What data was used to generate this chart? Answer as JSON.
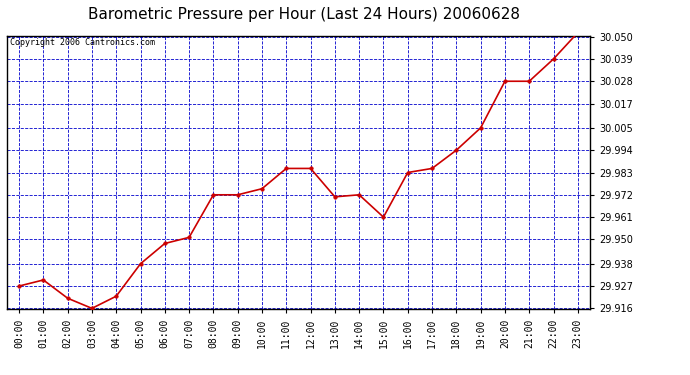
{
  "title": "Barometric Pressure per Hour (Last 24 Hours) 20060628",
  "copyright": "Copyright 2006 Cantronics.com",
  "hours": [
    "00:00",
    "01:00",
    "02:00",
    "03:00",
    "04:00",
    "05:00",
    "06:00",
    "07:00",
    "08:00",
    "09:00",
    "10:00",
    "11:00",
    "12:00",
    "13:00",
    "14:00",
    "15:00",
    "16:00",
    "17:00",
    "18:00",
    "19:00",
    "20:00",
    "21:00",
    "22:00",
    "23:00"
  ],
  "values": [
    29.927,
    29.93,
    29.921,
    29.916,
    29.922,
    29.938,
    29.948,
    29.951,
    29.972,
    29.972,
    29.975,
    29.985,
    29.985,
    29.971,
    29.972,
    29.961,
    29.983,
    29.985,
    29.994,
    30.005,
    30.028,
    30.028,
    30.039,
    30.052
  ],
  "line_color": "#cc0000",
  "marker_color": "#cc0000",
  "bg_color": "#ffffff",
  "plot_bg_color": "#ffffff",
  "grid_color": "#0000cc",
  "border_color": "#000000",
  "title_color": "#000000",
  "copyright_color": "#000000",
  "ylim_min": 29.916,
  "ylim_max": 30.05,
  "ytick_values": [
    29.916,
    29.927,
    29.938,
    29.95,
    29.961,
    29.972,
    29.983,
    29.994,
    30.005,
    30.017,
    30.028,
    30.039,
    30.05
  ],
  "title_fontsize": 11,
  "tick_fontsize": 7,
  "copyright_fontsize": 6
}
